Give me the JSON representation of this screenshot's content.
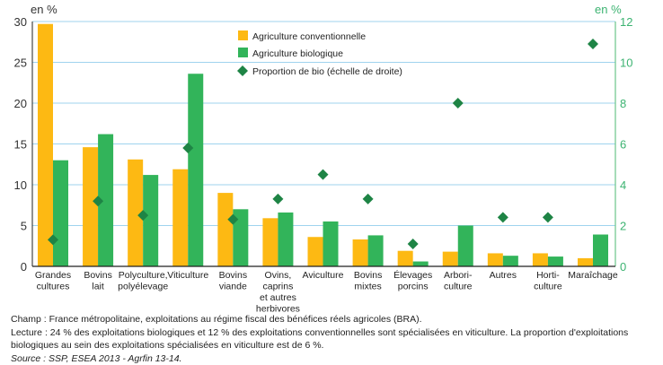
{
  "chart_data": {
    "type": "bar",
    "ylabel_left": "en %",
    "ylabel_right": "en %",
    "ylim_left": [
      0,
      30
    ],
    "ylim_right": [
      0,
      12
    ],
    "yticks_left": [
      0,
      5,
      10,
      15,
      20,
      25,
      30
    ],
    "yticks_right": [
      0,
      2,
      4,
      6,
      8,
      10,
      12
    ],
    "grid": true,
    "legend_placement": "top-center",
    "categories": [
      [
        "Grandes",
        "cultures"
      ],
      [
        "Bovins",
        "lait"
      ],
      [
        "Polyculture,",
        "polyélevage"
      ],
      [
        "Viticulture"
      ],
      [
        "Bovins",
        "viande"
      ],
      [
        "Ovins,",
        "caprins",
        "et autres",
        "herbivores"
      ],
      [
        "Aviculture"
      ],
      [
        "Bovins",
        "mixtes"
      ],
      [
        "Élevages",
        "porcins"
      ],
      [
        "Arbori-",
        "culture"
      ],
      [
        "Autres"
      ],
      [
        "Horti-",
        "culture"
      ],
      [
        "Maraîchage"
      ]
    ],
    "series": [
      {
        "name": "Agriculture conventionnelle",
        "type": "bar",
        "axis": "left",
        "color": "#fdb913",
        "values": [
          29.7,
          14.6,
          13.1,
          11.9,
          9.0,
          5.9,
          3.6,
          3.3,
          1.9,
          1.8,
          1.6,
          1.6,
          1.0
        ]
      },
      {
        "name": "Agriculture biologique",
        "type": "bar",
        "axis": "left",
        "color": "#32b45a",
        "values": [
          13.0,
          16.2,
          11.2,
          23.6,
          7.0,
          6.6,
          5.5,
          3.8,
          0.6,
          5.0,
          1.3,
          1.2,
          3.9
        ]
      },
      {
        "name": "Proportion de bio (échelle de droite)",
        "type": "scatter",
        "marker": "diamond",
        "axis": "right",
        "color": "#1e8445",
        "values": [
          1.3,
          3.2,
          2.5,
          5.8,
          2.3,
          3.3,
          4.5,
          3.3,
          1.1,
          8.0,
          2.4,
          2.4,
          10.9
        ]
      }
    ]
  },
  "notes": {
    "champ": "Champ : France métropolitaine, exploitations au régime fiscal des bénéfices réels agricoles (BRA).",
    "lecture": "Lecture : 24 % des exploitations biologiques et 12 % des exploitations conventionnelles sont spécialisées en viticulture. La proportion d'exploitations biologiques au sein des exploitations spécialisées en viticulture est de 6 %.",
    "source": "Source : SSP, ESEA 2013 - Agrfin 13-14."
  }
}
